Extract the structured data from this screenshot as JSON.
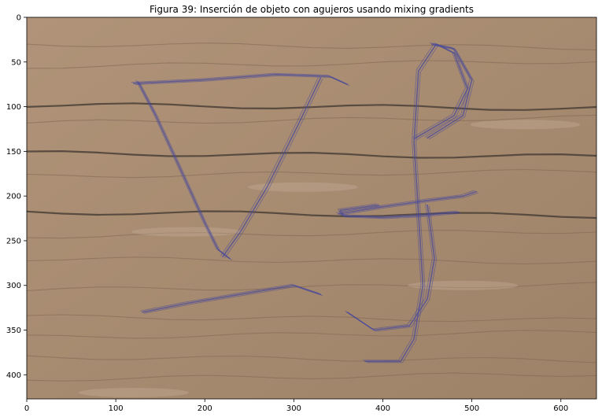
{
  "chart_data": {
    "type": "image",
    "title": "Figura 39: Inserción de objeto con agujeros usando mixing gradients",
    "xlim": [
      0,
      640
    ],
    "ylim": [
      427,
      0
    ],
    "xticks": [
      0,
      100,
      200,
      300,
      400,
      500,
      600
    ],
    "yticks": [
      0,
      50,
      100,
      150,
      200,
      250,
      300,
      350,
      400
    ],
    "xtick_labels": [
      "0",
      "100",
      "200",
      "300",
      "400",
      "500",
      "600"
    ],
    "ytick_labels": [
      "0",
      "50",
      "100",
      "150",
      "200",
      "250",
      "300",
      "350",
      "400"
    ],
    "image_description_colors": {
      "wood_base": "#a98c70",
      "wood_light": "#c8b39d",
      "grain_dark": "#4a3f37",
      "ink": "#4a4a9a"
    },
    "strokes": [
      {
        "name": "triangle-left-side",
        "points": [
          [
            125,
            72
          ],
          [
            145,
            110
          ],
          [
            175,
            175
          ],
          [
            200,
            230
          ],
          [
            215,
            260
          ],
          [
            228,
            270
          ]
        ]
      },
      {
        "name": "triangle-top-side",
        "points": [
          [
            120,
            74
          ],
          [
            200,
            70
          ],
          [
            280,
            64
          ],
          [
            340,
            66
          ],
          [
            360,
            75
          ]
        ]
      },
      {
        "name": "triangle-right-side",
        "points": [
          [
            330,
            68
          ],
          [
            305,
            120
          ],
          [
            270,
            190
          ],
          [
            240,
            240
          ],
          [
            220,
            268
          ]
        ]
      },
      {
        "name": "lower-bar",
        "points": [
          [
            130,
            330
          ],
          [
            180,
            320
          ],
          [
            240,
            310
          ],
          [
            300,
            300
          ],
          [
            330,
            310
          ]
        ]
      },
      {
        "name": "loop-stem",
        "points": [
          [
            435,
            136
          ],
          [
            480,
            110
          ],
          [
            495,
            80
          ],
          [
            480,
            40
          ],
          [
            460,
            30
          ],
          [
            440,
            60
          ],
          [
            435,
            140
          ],
          [
            440,
            220
          ],
          [
            445,
            300
          ],
          [
            435,
            360
          ],
          [
            420,
            385
          ],
          [
            380,
            385
          ]
        ]
      },
      {
        "name": "loop-outer",
        "points": [
          [
            455,
            30
          ],
          [
            480,
            35
          ],
          [
            500,
            70
          ],
          [
            490,
            110
          ],
          [
            450,
            135
          ]
        ]
      },
      {
        "name": "hook-bottom",
        "points": [
          [
            360,
            330
          ],
          [
            390,
            350
          ],
          [
            430,
            345
          ],
          [
            450,
            315
          ],
          [
            458,
            270
          ],
          [
            450,
            210
          ]
        ]
      },
      {
        "name": "crossbar",
        "points": [
          [
            350,
            220
          ],
          [
            400,
            212
          ],
          [
            450,
            205
          ],
          [
            490,
            200
          ],
          [
            505,
            195
          ]
        ]
      },
      {
        "name": "crossbar-return",
        "points": [
          [
            485,
            218
          ],
          [
            440,
            222
          ],
          [
            400,
            224
          ],
          [
            355,
            222
          ],
          [
            352,
            216
          ],
          [
            395,
            210
          ]
        ]
      }
    ]
  }
}
